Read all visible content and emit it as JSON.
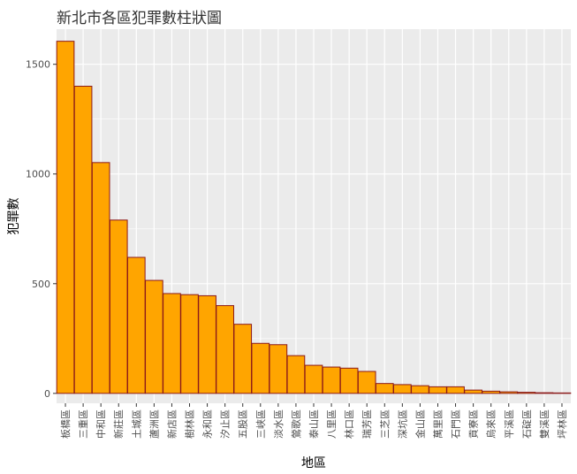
{
  "chart_data": {
    "type": "bar",
    "title": "新北市各區犯罪數柱狀圖",
    "xlabel": "地區",
    "ylabel": "犯罪數",
    "categories": [
      "板橋區",
      "三重區",
      "中和區",
      "新莊區",
      "土城區",
      "蘆洲區",
      "新店區",
      "樹林區",
      "永和區",
      "汐止區",
      "五股區",
      "三峽區",
      "淡水區",
      "鶯歌區",
      "泰山區",
      "八里區",
      "林口區",
      "瑞芳區",
      "三芝區",
      "深坑區",
      "金山區",
      "萬里區",
      "石門區",
      "貢寮區",
      "烏來區",
      "平溪區",
      "石碇區",
      "雙溪區",
      "坪林區"
    ],
    "values": [
      1605,
      1400,
      1052,
      790,
      620,
      515,
      455,
      450,
      445,
      400,
      315,
      228,
      222,
      172,
      128,
      120,
      115,
      100,
      45,
      40,
      35,
      30,
      30,
      15,
      10,
      7,
      5,
      3,
      2
    ],
    "ylim": [
      -45,
      1660
    ],
    "yticks": [
      0,
      500,
      1000,
      1500
    ],
    "grid": true,
    "legend": "none",
    "colors": {
      "bar_fill": "#FFA500",
      "bar_stroke": "#8B1A1A",
      "panel_bg": "#EBEBEB",
      "grid": "#FFFFFF"
    }
  }
}
